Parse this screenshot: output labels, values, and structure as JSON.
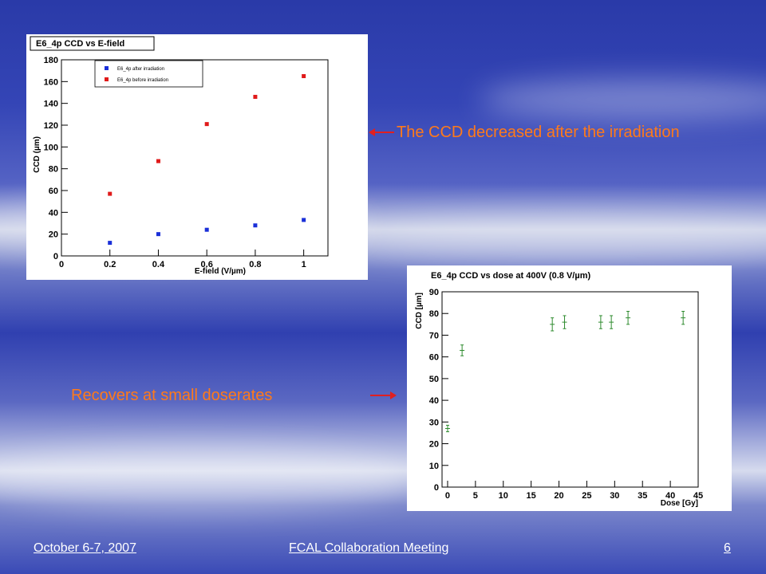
{
  "slide": {
    "annotation_top": "The CCD decreased after the irradiation",
    "annotation_bottom": "Recovers at small doserates",
    "footer_left": "October 6-7, 2007",
    "footer_center": "FCAL Collaboration Meeting",
    "footer_right": "6",
    "annotation_color": "#ff7a1a",
    "arrow_color": "#e02020"
  },
  "chart_data": [
    {
      "type": "scatter",
      "title": "E6_4p CCD vs E-field",
      "xlabel": "E-field (V/µm)",
      "ylabel": "CCD (µm)",
      "xlim": [
        0,
        1.1
      ],
      "ylim": [
        0,
        180
      ],
      "xticks": [
        0,
        0.2,
        0.4,
        0.6,
        0.8,
        1
      ],
      "xtick_labels": [
        "0",
        "0.2",
        "0.4",
        "0.6",
        "0.8",
        "1"
      ],
      "yticks": [
        0,
        20,
        40,
        60,
        80,
        100,
        120,
        140,
        160,
        180
      ],
      "legend_position": "top-left",
      "series": [
        {
          "name": "E6_4p after irradiation",
          "color": "#1a2fd8",
          "x": [
            0.2,
            0.4,
            0.6,
            0.8,
            1.0
          ],
          "y": [
            12,
            20,
            24,
            28,
            33
          ]
        },
        {
          "name": "E6_4p before irradiation",
          "color": "#e01a1a",
          "x": [
            0.2,
            0.4,
            0.6,
            0.8,
            1.0
          ],
          "y": [
            57,
            87,
            121,
            146,
            165
          ]
        }
      ]
    },
    {
      "type": "scatter",
      "title": "E6_4p CCD vs dose at 400V (0.8 V/µm)",
      "xlabel": "Dose [Gy]",
      "ylabel": "CCD [µm]",
      "xlim": [
        -1,
        45
      ],
      "ylim": [
        0,
        90
      ],
      "xticks": [
        0,
        5,
        10,
        15,
        20,
        25,
        30,
        35,
        40,
        45
      ],
      "xtick_labels": [
        "0",
        "5",
        "10",
        "15",
        "20",
        "25",
        "30",
        "35",
        "40",
        "45"
      ],
      "yticks": [
        0,
        10,
        20,
        30,
        40,
        50,
        60,
        70,
        80,
        90
      ],
      "series": [
        {
          "color": "#2e8b2e",
          "x": [
            0,
            2.6,
            18.8,
            21,
            27.5,
            29.4,
            32.4,
            42.3
          ],
          "y": [
            27,
            63,
            75,
            76,
            76,
            76,
            78,
            78
          ],
          "yerr": [
            1.5,
            2.5,
            3,
            3,
            3,
            3,
            3,
            3
          ]
        }
      ]
    }
  ]
}
